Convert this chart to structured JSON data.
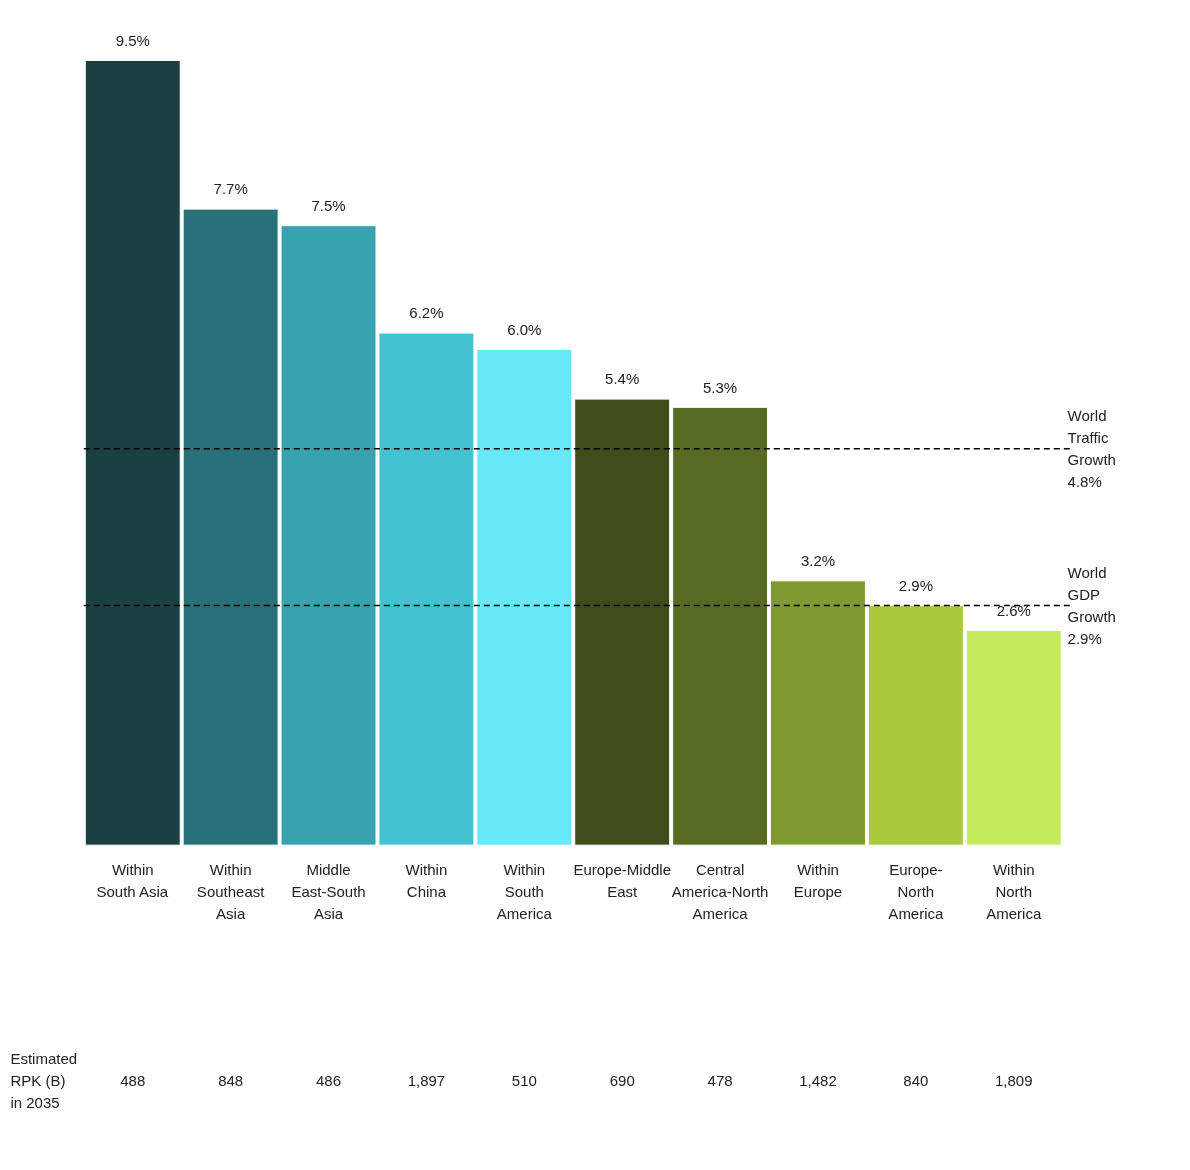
{
  "chart_data": {
    "type": "bar",
    "categories": [
      "Within South Asia",
      "Within Southeast Asia",
      "Middle East-South Asia",
      "Within China",
      "Within South America",
      "Europe-Middle East",
      "Central America-North America",
      "Within Europe",
      "Europe- North America",
      "Within North America"
    ],
    "values": [
      9.5,
      7.7,
      7.5,
      6.2,
      6.0,
      5.4,
      5.3,
      3.2,
      2.9,
      2.6
    ],
    "value_labels": [
      "9.5%",
      "7.7%",
      "7.5%",
      "6.2%",
      "6.0%",
      "5.4%",
      "5.3%",
      "3.2%",
      "2.9%",
      "2.6%"
    ],
    "colors": [
      "#1a4044",
      "#287179",
      "#37a3b0",
      "#43c2d2",
      "#66e8f8",
      "#3e4d1a",
      "#586b25",
      "#7e9a30",
      "#a8c93e",
      "#c5ea5e"
    ],
    "ref_lines": [
      {
        "axis": "y",
        "value": 4.8,
        "label": "World Traffic Growth 4.8%",
        "color": "#000000",
        "line_style": "dashed"
      },
      {
        "axis": "y",
        "value": 2.9,
        "label": "World GDP Growth 2.9%",
        "color": "#000000",
        "line_style": "dashed"
      }
    ],
    "annotations": [
      "Estimated RPK (B) in 2035",
      "488",
      "848",
      "486",
      "1,897",
      "510",
      "690",
      "478",
      "1,482",
      "840",
      "1,809"
    ],
    "grid": false
  }
}
